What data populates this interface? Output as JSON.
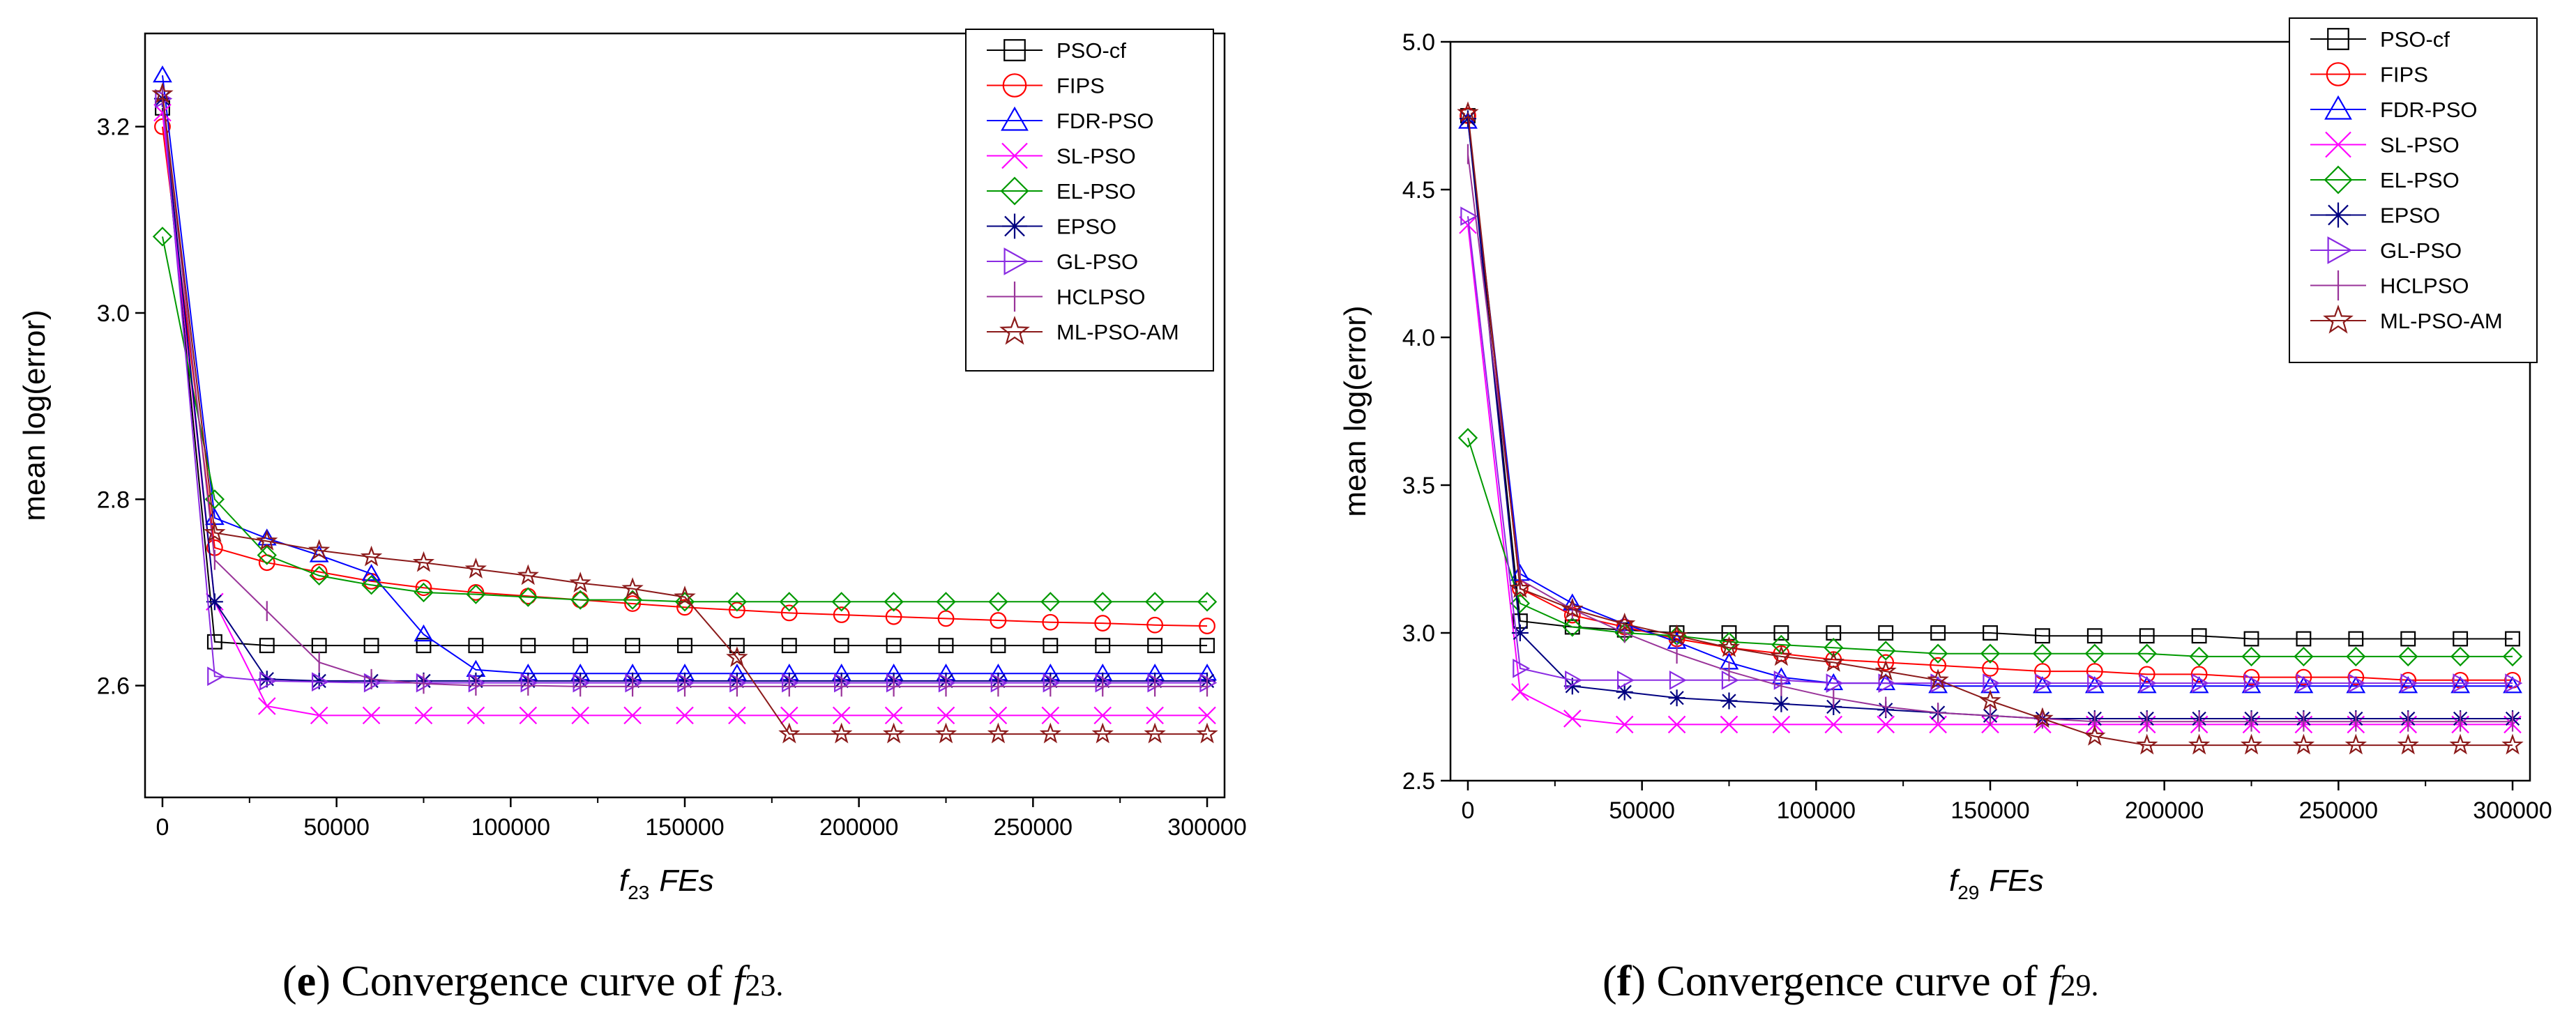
{
  "chart_data": [
    {
      "type": "line",
      "caption": {
        "label": "e",
        "text": "Convergence curve of ",
        "func": "f",
        "sub": "23",
        "end": "."
      },
      "xlabel": {
        "func": "f",
        "sub": "23",
        "text": "FEs"
      },
      "ylabel": "mean log(error)",
      "xlim": [
        -5000,
        305000
      ],
      "ylim": [
        2.48,
        3.3
      ],
      "xticks": [
        0,
        50000,
        100000,
        150000,
        200000,
        250000,
        300000
      ],
      "yticks": [
        2.6,
        2.8,
        3.0,
        3.2
      ],
      "x": [
        0,
        15000,
        30000,
        45000,
        60000,
        75000,
        90000,
        105000,
        120000,
        135000,
        150000,
        165000,
        180000,
        195000,
        210000,
        225000,
        240000,
        255000,
        270000,
        285000,
        300000
      ],
      "series": [
        {
          "name": "PSO-cf",
          "color": "#000000",
          "marker": "square",
          "values": [
            3.22,
            2.647,
            2.643,
            2.643,
            2.643,
            2.643,
            2.643,
            2.643,
            2.643,
            2.643,
            2.643,
            2.643,
            2.643,
            2.643,
            2.643,
            2.643,
            2.643,
            2.643,
            2.643,
            2.643,
            2.643
          ]
        },
        {
          "name": "FIPS",
          "color": "#ff0000",
          "marker": "circle",
          "values": [
            3.2,
            2.748,
            2.732,
            2.722,
            2.712,
            2.705,
            2.7,
            2.696,
            2.692,
            2.688,
            2.684,
            2.681,
            2.678,
            2.676,
            2.674,
            2.672,
            2.67,
            2.668,
            2.667,
            2.665,
            2.664
          ]
        },
        {
          "name": "FDR-PSO",
          "color": "#0000ff",
          "marker": "triangle",
          "values": [
            3.255,
            2.78,
            2.758,
            2.74,
            2.72,
            2.655,
            2.617,
            2.613,
            2.613,
            2.613,
            2.613,
            2.613,
            2.613,
            2.613,
            2.613,
            2.613,
            2.613,
            2.613,
            2.613,
            2.613,
            2.613
          ]
        },
        {
          "name": "SL-PSO",
          "color": "#ff00ff",
          "marker": "x",
          "values": [
            3.215,
            2.69,
            2.578,
            2.568,
            2.568,
            2.568,
            2.568,
            2.568,
            2.568,
            2.568,
            2.568,
            2.568,
            2.568,
            2.568,
            2.568,
            2.568,
            2.568,
            2.568,
            2.568,
            2.568,
            2.568
          ]
        },
        {
          "name": "EL-PSO",
          "color": "#009900",
          "marker": "diamond",
          "values": [
            3.082,
            2.8,
            2.74,
            2.718,
            2.708,
            2.7,
            2.698,
            2.695,
            2.692,
            2.692,
            2.69,
            2.69,
            2.69,
            2.69,
            2.69,
            2.69,
            2.69,
            2.69,
            2.69,
            2.69,
            2.69
          ]
        },
        {
          "name": "EPSO",
          "color": "#000080",
          "marker": "asterisk",
          "values": [
            3.23,
            2.69,
            2.607,
            2.605,
            2.605,
            2.605,
            2.605,
            2.605,
            2.605,
            2.605,
            2.605,
            2.605,
            2.605,
            2.605,
            2.605,
            2.605,
            2.605,
            2.605,
            2.605,
            2.605,
            2.605
          ]
        },
        {
          "name": "GL-PSO",
          "color": "#8a2be2",
          "marker": "tri-right",
          "values": [
            3.23,
            2.61,
            2.605,
            2.604,
            2.603,
            2.603,
            2.603,
            2.603,
            2.603,
            2.603,
            2.603,
            2.603,
            2.603,
            2.603,
            2.603,
            2.603,
            2.603,
            2.603,
            2.603,
            2.603,
            2.603
          ]
        },
        {
          "name": "HCLPSO",
          "color": "#993399",
          "marker": "plus",
          "values": [
            3.235,
            2.735,
            2.68,
            2.625,
            2.607,
            2.602,
            2.6,
            2.6,
            2.599,
            2.599,
            2.599,
            2.599,
            2.599,
            2.599,
            2.599,
            2.599,
            2.599,
            2.599,
            2.599,
            2.599,
            2.599
          ]
        },
        {
          "name": "ML-PSO-AM",
          "color": "#8b1a1a",
          "marker": "star",
          "values": [
            3.235,
            2.764,
            2.755,
            2.745,
            2.738,
            2.732,
            2.725,
            2.718,
            2.71,
            2.704,
            2.695,
            2.63,
            2.548,
            2.548,
            2.548,
            2.548,
            2.548,
            2.548,
            2.548,
            2.548,
            2.548
          ]
        }
      ]
    },
    {
      "type": "line",
      "caption": {
        "label": "f",
        "text": "Convergence curve of ",
        "func": "f",
        "sub": "29",
        "end": "."
      },
      "xlabel": {
        "func": "f",
        "sub": "29",
        "text": "FEs"
      },
      "ylabel": "mean log(error)",
      "xlim": [
        -5000,
        305000
      ],
      "ylim": [
        2.5,
        5.0
      ],
      "xticks": [
        0,
        50000,
        100000,
        150000,
        200000,
        250000,
        300000
      ],
      "yticks": [
        2.5,
        3.0,
        3.5,
        4.0,
        4.5,
        5.0
      ],
      "x": [
        0,
        15000,
        30000,
        45000,
        60000,
        75000,
        90000,
        105000,
        120000,
        135000,
        150000,
        165000,
        180000,
        195000,
        210000,
        225000,
        240000,
        255000,
        270000,
        285000,
        300000
      ],
      "series": [
        {
          "name": "PSO-cf",
          "color": "#000000",
          "marker": "square",
          "values": [
            4.75,
            3.04,
            3.02,
            3.01,
            3.0,
            3.0,
            3.0,
            3.0,
            3.0,
            3.0,
            3.0,
            2.99,
            2.99,
            2.99,
            2.99,
            2.98,
            2.98,
            2.98,
            2.98,
            2.98,
            2.98
          ]
        },
        {
          "name": "FIPS",
          "color": "#ff0000",
          "marker": "circle",
          "values": [
            4.75,
            3.15,
            3.06,
            3.02,
            2.98,
            2.95,
            2.93,
            2.91,
            2.9,
            2.89,
            2.88,
            2.87,
            2.87,
            2.86,
            2.86,
            2.85,
            2.85,
            2.85,
            2.84,
            2.84,
            2.84
          ]
        },
        {
          "name": "FDR-PSO",
          "color": "#0000ff",
          "marker": "triangle",
          "values": [
            4.73,
            3.2,
            3.1,
            3.03,
            2.97,
            2.9,
            2.85,
            2.83,
            2.83,
            2.82,
            2.82,
            2.82,
            2.82,
            2.82,
            2.82,
            2.82,
            2.82,
            2.82,
            2.82,
            2.82,
            2.82
          ]
        },
        {
          "name": "SL-PSO",
          "color": "#ff00ff",
          "marker": "x",
          "values": [
            4.38,
            2.8,
            2.71,
            2.69,
            2.69,
            2.69,
            2.69,
            2.69,
            2.69,
            2.69,
            2.69,
            2.69,
            2.69,
            2.69,
            2.69,
            2.69,
            2.69,
            2.69,
            2.69,
            2.69,
            2.69
          ]
        },
        {
          "name": "EL-PSO",
          "color": "#009900",
          "marker": "diamond",
          "values": [
            3.66,
            3.1,
            3.02,
            3.0,
            2.99,
            2.97,
            2.96,
            2.95,
            2.94,
            2.93,
            2.93,
            2.93,
            2.93,
            2.93,
            2.92,
            2.92,
            2.92,
            2.92,
            2.92,
            2.92,
            2.92
          ]
        },
        {
          "name": "EPSO",
          "color": "#000080",
          "marker": "asterisk",
          "values": [
            4.74,
            3.0,
            2.82,
            2.8,
            2.78,
            2.77,
            2.76,
            2.75,
            2.74,
            2.73,
            2.72,
            2.71,
            2.71,
            2.71,
            2.71,
            2.71,
            2.71,
            2.71,
            2.71,
            2.71,
            2.71
          ]
        },
        {
          "name": "GL-PSO",
          "color": "#8a2be2",
          "marker": "tri-right",
          "values": [
            4.41,
            2.88,
            2.84,
            2.84,
            2.84,
            2.84,
            2.84,
            2.83,
            2.83,
            2.83,
            2.83,
            2.83,
            2.83,
            2.83,
            2.83,
            2.83,
            2.83,
            2.83,
            2.83,
            2.83,
            2.83
          ]
        },
        {
          "name": "HCLPSO",
          "color": "#993399",
          "marker": "plus",
          "values": [
            4.62,
            3.18,
            3.08,
            3.0,
            2.93,
            2.87,
            2.82,
            2.78,
            2.75,
            2.73,
            2.72,
            2.71,
            2.7,
            2.7,
            2.7,
            2.7,
            2.7,
            2.7,
            2.7,
            2.7,
            2.7
          ]
        },
        {
          "name": "ML-PSO-AM",
          "color": "#8b1a1a",
          "marker": "star",
          "values": [
            4.76,
            3.15,
            3.08,
            3.03,
            2.99,
            2.95,
            2.92,
            2.9,
            2.87,
            2.84,
            2.77,
            2.71,
            2.65,
            2.62,
            2.62,
            2.62,
            2.62,
            2.62,
            2.62,
            2.62,
            2.62
          ]
        }
      ]
    }
  ]
}
